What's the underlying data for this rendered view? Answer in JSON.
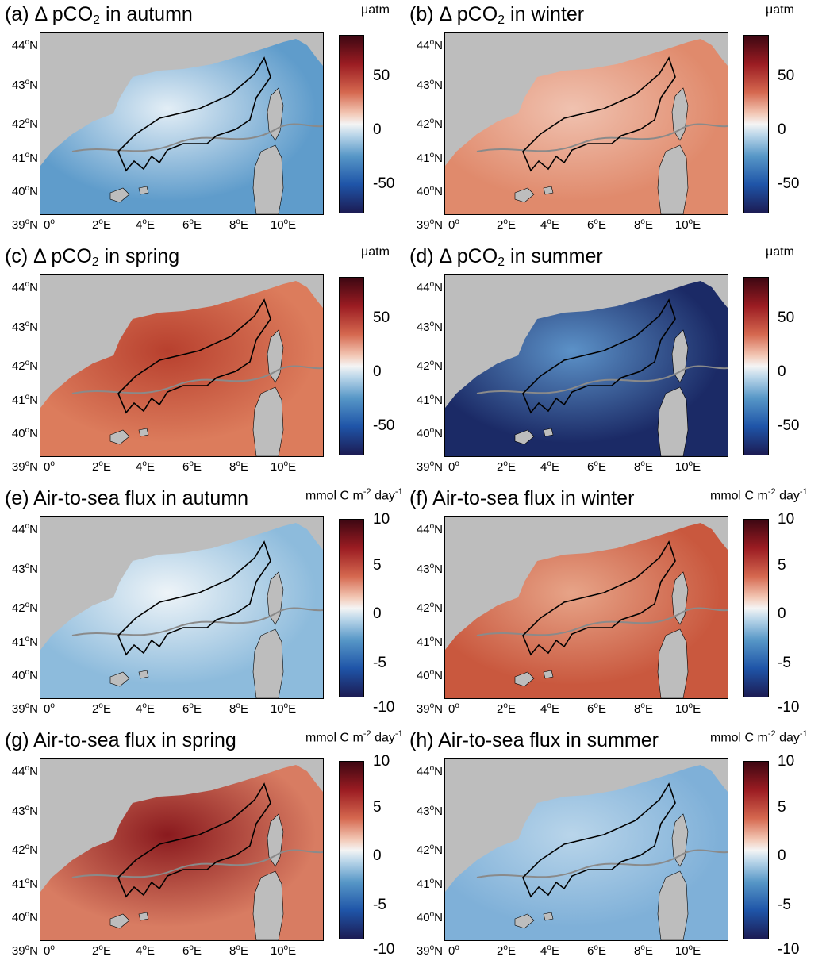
{
  "panels": [
    {
      "id": "a",
      "title_pre": "(a) Δ pCO",
      "title_sub": "2",
      "title_post": " in autumn",
      "unit": "μatm",
      "unit_sup": "",
      "unit_post": "",
      "map_color": "#5f9ccb",
      "coast_color": "#e3eef6",
      "cbar_ticks": [
        "50",
        "0",
        "-50"
      ],
      "cbar_kind": "pco2"
    },
    {
      "id": "b",
      "title_pre": "(b) Δ pCO",
      "title_sub": "2",
      "title_post": " in winter",
      "unit": "μatm",
      "unit_sup": "",
      "unit_post": "",
      "map_color": "#e08a6c",
      "coast_color": "#f0c2b0",
      "cbar_ticks": [
        "50",
        "0",
        "-50"
      ],
      "cbar_kind": "pco2"
    },
    {
      "id": "c",
      "title_pre": "(c) Δ pCO",
      "title_sub": "2",
      "title_post": " in spring",
      "unit": "μatm",
      "unit_sup": "",
      "unit_post": "",
      "map_color": "#dc7c5c",
      "coast_color": "#b8402e",
      "cbar_ticks": [
        "50",
        "0",
        "-50"
      ],
      "cbar_kind": "pco2"
    },
    {
      "id": "d",
      "title_pre": "(d) Δ pCO",
      "title_sub": "2",
      "title_post": " in summer",
      "unit": "μatm",
      "unit_sup": "",
      "unit_post": "",
      "map_color": "#1b2a66",
      "coast_color": "#5c92c8",
      "cbar_ticks": [
        "50",
        "0",
        "-50"
      ],
      "cbar_kind": "pco2"
    },
    {
      "id": "e",
      "title_pre": "(e) Air-to-sea flux in autumn",
      "title_sub": "",
      "title_post": "",
      "unit": "mmol C m",
      "unit_sup": "-2",
      "unit_post": " day",
      "unit_sup2": "-1",
      "map_color": "#8dbbdc",
      "coast_color": "#eef4f8",
      "cbar_ticks": [
        "10",
        "5",
        "0",
        "-5",
        "-10"
      ],
      "cbar_kind": "flux"
    },
    {
      "id": "f",
      "title_pre": "(f) Air-to-sea flux in winter",
      "title_sub": "",
      "title_post": "",
      "unit": "mmol C m",
      "unit_sup": "-2",
      "unit_post": " day",
      "unit_sup2": "-1",
      "map_color": "#c9583e",
      "coast_color": "#e7a488",
      "cbar_ticks": [
        "10",
        "5",
        "0",
        "-5",
        "-10"
      ],
      "cbar_kind": "flux"
    },
    {
      "id": "g",
      "title_pre": "(g) Air-to-sea flux in spring",
      "title_sub": "",
      "title_post": "",
      "unit": "mmol C m",
      "unit_sup": "-2",
      "unit_post": " day",
      "unit_sup2": "-1",
      "map_color": "#d87c62",
      "coast_color": "#8a1a1e",
      "cbar_ticks": [
        "10",
        "5",
        "0",
        "-5",
        "-10"
      ],
      "cbar_kind": "flux"
    },
    {
      "id": "h",
      "title_pre": "(h) Air-to-sea flux in summer",
      "title_sub": "",
      "title_post": "",
      "unit": "mmol C m",
      "unit_sup": "-2",
      "unit_post": " day",
      "unit_sup2": "-1",
      "map_color": "#7fb0d8",
      "coast_color": "#b9d5ea",
      "cbar_ticks": [
        "10",
        "5",
        "0",
        "-5",
        "-10"
      ],
      "cbar_kind": "flux"
    }
  ],
  "lat_labels": [
    {
      "deg": "44",
      "sup": "o",
      "dir": "N"
    },
    {
      "deg": "43",
      "sup": "o",
      "dir": "N"
    },
    {
      "deg": "42",
      "sup": "o",
      "dir": "N"
    },
    {
      "deg": "41",
      "sup": "o",
      "dir": "N"
    },
    {
      "deg": "40",
      "sup": "o",
      "dir": "N"
    },
    {
      "deg": "39",
      "sup": "o",
      "dir": "N"
    }
  ],
  "lon_labels": [
    {
      "deg": "0",
      "sup": "o",
      "dir": ""
    },
    {
      "deg": "2",
      "sup": "o",
      "dir": "E"
    },
    {
      "deg": "4",
      "sup": "o",
      "dir": "E"
    },
    {
      "deg": "6",
      "sup": "o",
      "dir": "E"
    },
    {
      "deg": "8",
      "sup": "o",
      "dir": "E"
    },
    {
      "deg": "10",
      "sup": "o",
      "dir": "E"
    }
  ],
  "colors": {
    "land": "#bdbdbd",
    "contour": "#8a8a8a",
    "outline": "#000000"
  }
}
